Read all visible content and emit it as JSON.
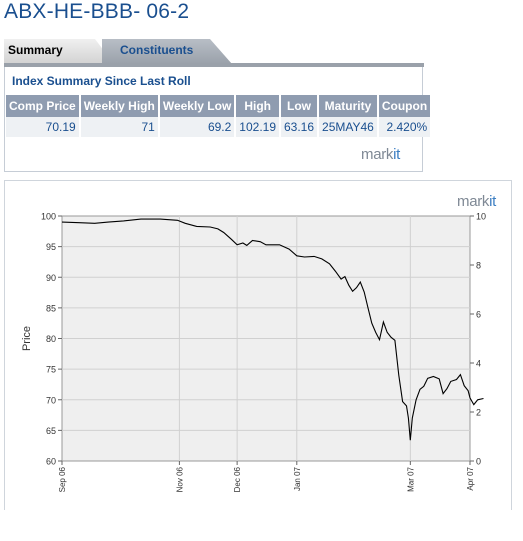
{
  "page": {
    "title": "ABX-HE-BBB- 06-2"
  },
  "tabs": [
    {
      "label": "Summary",
      "active": true
    },
    {
      "label": "Constituents",
      "active": false
    }
  ],
  "summary": {
    "heading": "Index Summary Since Last Roll",
    "columns": [
      "Comp Price",
      "Weekly High",
      "Weekly Low",
      "High",
      "Low",
      "Maturity",
      "Coupon"
    ],
    "row": [
      "70.19",
      "71",
      "69.2",
      "102.19",
      "63.16",
      "25MAY46",
      "2.420%"
    ],
    "logo": {
      "main": "mark",
      "accent": "it"
    }
  },
  "colors": {
    "title": "#1a4f8f",
    "header_bg": "#8f9cb0",
    "plot_bg": "#efefef",
    "line": "#000000"
  },
  "chart_data": {
    "type": "line",
    "title": "",
    "xlabel": "",
    "ylabel": "Price",
    "ylim": [
      60,
      100
    ],
    "y_ticks": [
      60,
      65,
      70,
      75,
      80,
      85,
      90,
      95,
      100
    ],
    "y2lim": [
      0,
      10
    ],
    "y2_ticks": [
      0,
      2,
      4,
      6,
      8,
      10
    ],
    "xlim": [
      "2006-09-01",
      "2007-04-01"
    ],
    "x_ticks": [
      {
        "date": "2006-09-01",
        "label": "Sep 06"
      },
      {
        "date": "2006-11-01",
        "label": "Nov 06"
      },
      {
        "date": "2006-12-01",
        "label": "Dec 06"
      },
      {
        "date": "2007-01-01",
        "label": "Jan 07"
      },
      {
        "date": "2007-03-01",
        "label": "Mar 07"
      },
      {
        "date": "2007-04-01",
        "label": "Apr 07"
      }
    ],
    "grid": true,
    "logo": {
      "main": "mark",
      "accent": "it"
    },
    "series": [
      {
        "values": [
          [
            "2006-09-01",
            99.0
          ],
          [
            "2006-09-10",
            98.9
          ],
          [
            "2006-09-18",
            98.8
          ],
          [
            "2006-09-25",
            99.0
          ],
          [
            "2006-10-03",
            99.2
          ],
          [
            "2006-10-12",
            99.5
          ],
          [
            "2006-10-22",
            99.5
          ],
          [
            "2006-10-31",
            99.3
          ],
          [
            "2006-11-04",
            98.8
          ],
          [
            "2006-11-10",
            98.3
          ],
          [
            "2006-11-17",
            98.2
          ],
          [
            "2006-11-21",
            97.9
          ],
          [
            "2006-11-24",
            97.3
          ],
          [
            "2006-11-28",
            96.2
          ],
          [
            "2006-12-01",
            95.3
          ],
          [
            "2006-12-04",
            95.6
          ],
          [
            "2006-12-06",
            95.2
          ],
          [
            "2006-12-09",
            96.0
          ],
          [
            "2006-12-13",
            95.8
          ],
          [
            "2006-12-16",
            95.3
          ],
          [
            "2006-12-23",
            95.3
          ],
          [
            "2006-12-28",
            94.6
          ],
          [
            "2007-01-01",
            93.5
          ],
          [
            "2007-01-05",
            93.3
          ],
          [
            "2007-01-10",
            93.4
          ],
          [
            "2007-01-14",
            93.0
          ],
          [
            "2007-01-18",
            92.2
          ],
          [
            "2007-01-21",
            91.0
          ],
          [
            "2007-01-24",
            89.7
          ],
          [
            "2007-01-26",
            90.1
          ],
          [
            "2007-01-28",
            88.7
          ],
          [
            "2007-01-30",
            87.7
          ],
          [
            "2007-02-01",
            88.3
          ],
          [
            "2007-02-03",
            89.2
          ],
          [
            "2007-02-05",
            87.6
          ],
          [
            "2007-02-07",
            85.0
          ],
          [
            "2007-02-09",
            82.5
          ],
          [
            "2007-02-11",
            81.0
          ],
          [
            "2007-02-13",
            79.8
          ],
          [
            "2007-02-15",
            82.7
          ],
          [
            "2007-02-17",
            81.0
          ],
          [
            "2007-02-19",
            80.2
          ],
          [
            "2007-02-21",
            79.7
          ],
          [
            "2007-02-23",
            74.0
          ],
          [
            "2007-02-25",
            69.7
          ],
          [
            "2007-02-27",
            69.0
          ],
          [
            "2007-02-28",
            67.0
          ],
          [
            "2007-03-01",
            63.4
          ],
          [
            "2007-03-02",
            67.0
          ],
          [
            "2007-03-04",
            70.0
          ],
          [
            "2007-03-06",
            71.7
          ],
          [
            "2007-03-08",
            72.2
          ],
          [
            "2007-03-10",
            73.5
          ],
          [
            "2007-03-13",
            73.8
          ],
          [
            "2007-03-16",
            73.4
          ],
          [
            "2007-03-18",
            71.0
          ],
          [
            "2007-03-20",
            71.8
          ],
          [
            "2007-03-22",
            73.0
          ],
          [
            "2007-03-25",
            73.3
          ],
          [
            "2007-03-27",
            74.1
          ],
          [
            "2007-03-29",
            72.3
          ],
          [
            "2007-03-31",
            71.5
          ],
          [
            "2007-04-01",
            70.3
          ],
          [
            "2007-04-03",
            69.2
          ],
          [
            "2007-04-05",
            70.0
          ],
          [
            "2007-04-08",
            70.2
          ]
        ]
      }
    ]
  }
}
